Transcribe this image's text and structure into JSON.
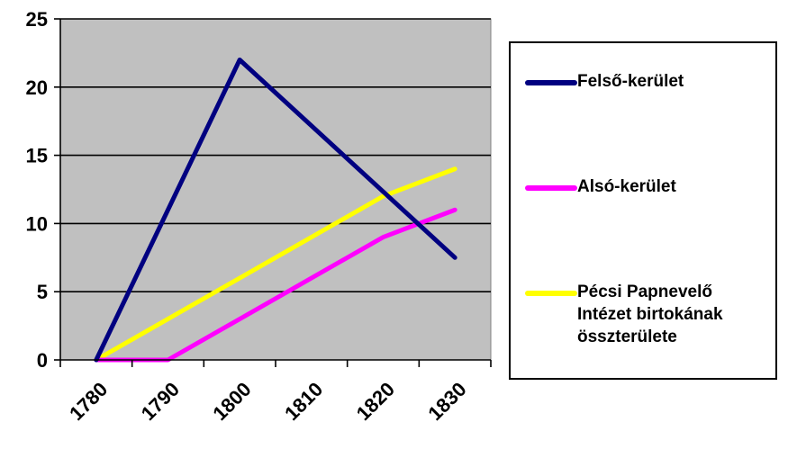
{
  "chart_data": {
    "type": "line",
    "title": "",
    "xlabel": "",
    "ylabel": "",
    "x": [
      1785,
      1795,
      1805,
      1815,
      1825,
      1835
    ],
    "x_ticks": [
      "1780",
      "1790",
      "1800",
      "1810",
      "1820",
      "1830"
    ],
    "y_ticks": [
      "0",
      "5",
      "10",
      "15",
      "20",
      "25"
    ],
    "xlim": [
      1780,
      1840
    ],
    "ylim": [
      0,
      25
    ],
    "grid": "horizontal",
    "plot_background": "#c0c0c0",
    "legend_position": "right",
    "series": [
      {
        "name": "Felső-kerület",
        "color": "#000080",
        "points": [
          [
            1785,
            0
          ],
          [
            1805,
            22
          ],
          [
            1835,
            7.5
          ]
        ]
      },
      {
        "name": "Alsó-kerület",
        "color": "#ff00ff",
        "points": [
          [
            1785,
            0
          ],
          [
            1795,
            0
          ],
          [
            1825,
            9
          ],
          [
            1835,
            11
          ]
        ]
      },
      {
        "name": "Pécsi Papnevelő\nIntézet birtokának\nösszterülete",
        "color": "#ffff00",
        "points": [
          [
            1785,
            0
          ],
          [
            1825,
            12
          ],
          [
            1835,
            14
          ]
        ]
      }
    ]
  }
}
